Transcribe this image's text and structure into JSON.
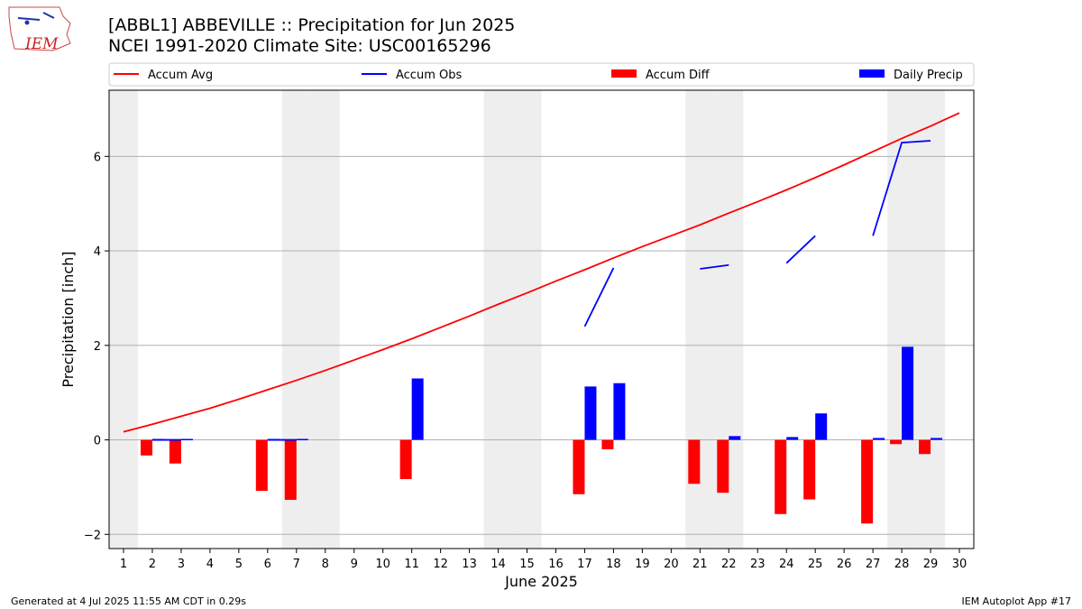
{
  "logo_text": "IEM",
  "title_line1": "[ABBL1] ABBEVILLE :: Precipitation for Jun 2025",
  "title_line2": "NCEI 1991-2020 Climate Site: USC00165296",
  "footer_left": "Generated at 4 Jul 2025 11:55 AM CDT in 0.29s",
  "footer_right": "IEM Autoplot App #17",
  "colors": {
    "avg": "#ff0000",
    "obs": "#0000ff",
    "diff": "#ff0000",
    "daily": "#0000ff",
    "weekend": "#eeeeee",
    "grid": "#b0b0b0"
  },
  "chart_data": {
    "type": "bar",
    "xlabel": "June 2025",
    "ylabel": "Precipitation [inch]",
    "xlim": [
      0.5,
      30.5
    ],
    "ylim": [
      -2.3,
      7.4
    ],
    "yticks": [
      -2,
      0,
      2,
      4,
      6
    ],
    "xticks": [
      1,
      2,
      3,
      4,
      5,
      6,
      7,
      8,
      9,
      10,
      11,
      12,
      13,
      14,
      15,
      16,
      17,
      18,
      19,
      20,
      21,
      22,
      23,
      24,
      25,
      26,
      27,
      28,
      29,
      30
    ],
    "grid": "y-axis only",
    "legend_placement": "top, above plot",
    "legend": [
      "Accum Avg",
      "Accum Obs",
      "Accum Diff",
      "Daily Precip"
    ],
    "weekend_days": [
      1,
      7,
      8,
      14,
      15,
      21,
      22,
      28,
      29
    ],
    "accum_avg": {
      "name": "Accum Avg",
      "x": [
        1,
        2,
        3,
        4,
        5,
        6,
        7,
        8,
        9,
        10,
        11,
        12,
        13,
        14,
        15,
        16,
        17,
        18,
        19,
        20,
        21,
        22,
        23,
        24,
        25,
        26,
        27,
        28,
        29,
        30
      ],
      "y": [
        0.17,
        0.33,
        0.5,
        0.67,
        0.86,
        1.06,
        1.26,
        1.47,
        1.69,
        1.91,
        2.14,
        2.38,
        2.62,
        2.87,
        3.11,
        3.36,
        3.6,
        3.85,
        4.09,
        4.32,
        4.55,
        4.8,
        5.04,
        5.29,
        5.55,
        5.82,
        6.1,
        6.38,
        6.64,
        6.92
      ]
    },
    "accum_obs_segments": [
      {
        "x": [
          2,
          3
        ],
        "y": [
          0.0,
          0.0
        ]
      },
      {
        "x": [
          6,
          7
        ],
        "y": [
          0.0,
          0.0
        ]
      },
      {
        "x": [
          17,
          18
        ],
        "y": [
          2.4,
          3.64
        ]
      },
      {
        "x": [
          21,
          22
        ],
        "y": [
          3.62,
          3.7
        ]
      },
      {
        "x": [
          24,
          25
        ],
        "y": [
          3.74,
          4.32
        ]
      },
      {
        "x": [
          27,
          28,
          29
        ],
        "y": [
          4.32,
          6.29,
          6.33
        ]
      }
    ],
    "accum_diff": {
      "name": "Accum Diff",
      "x": [
        2,
        3,
        6,
        7,
        11,
        17,
        18,
        21,
        22,
        24,
        25,
        27,
        28,
        29
      ],
      "values": [
        -0.33,
        -0.5,
        -1.08,
        -1.27,
        -0.83,
        -1.15,
        -0.2,
        -0.93,
        -1.12,
        -1.57,
        -1.26,
        -1.77,
        -0.09,
        -0.3
      ]
    },
    "daily_precip": {
      "name": "Daily Precip",
      "x": [
        2,
        3,
        6,
        7,
        11,
        17,
        18,
        22,
        24,
        25,
        27,
        28,
        29
      ],
      "values": [
        0.02,
        0.02,
        0.02,
        0.02,
        1.3,
        1.13,
        1.2,
        0.08,
        0.06,
        0.56,
        0.04,
        1.97,
        0.04
      ]
    }
  }
}
